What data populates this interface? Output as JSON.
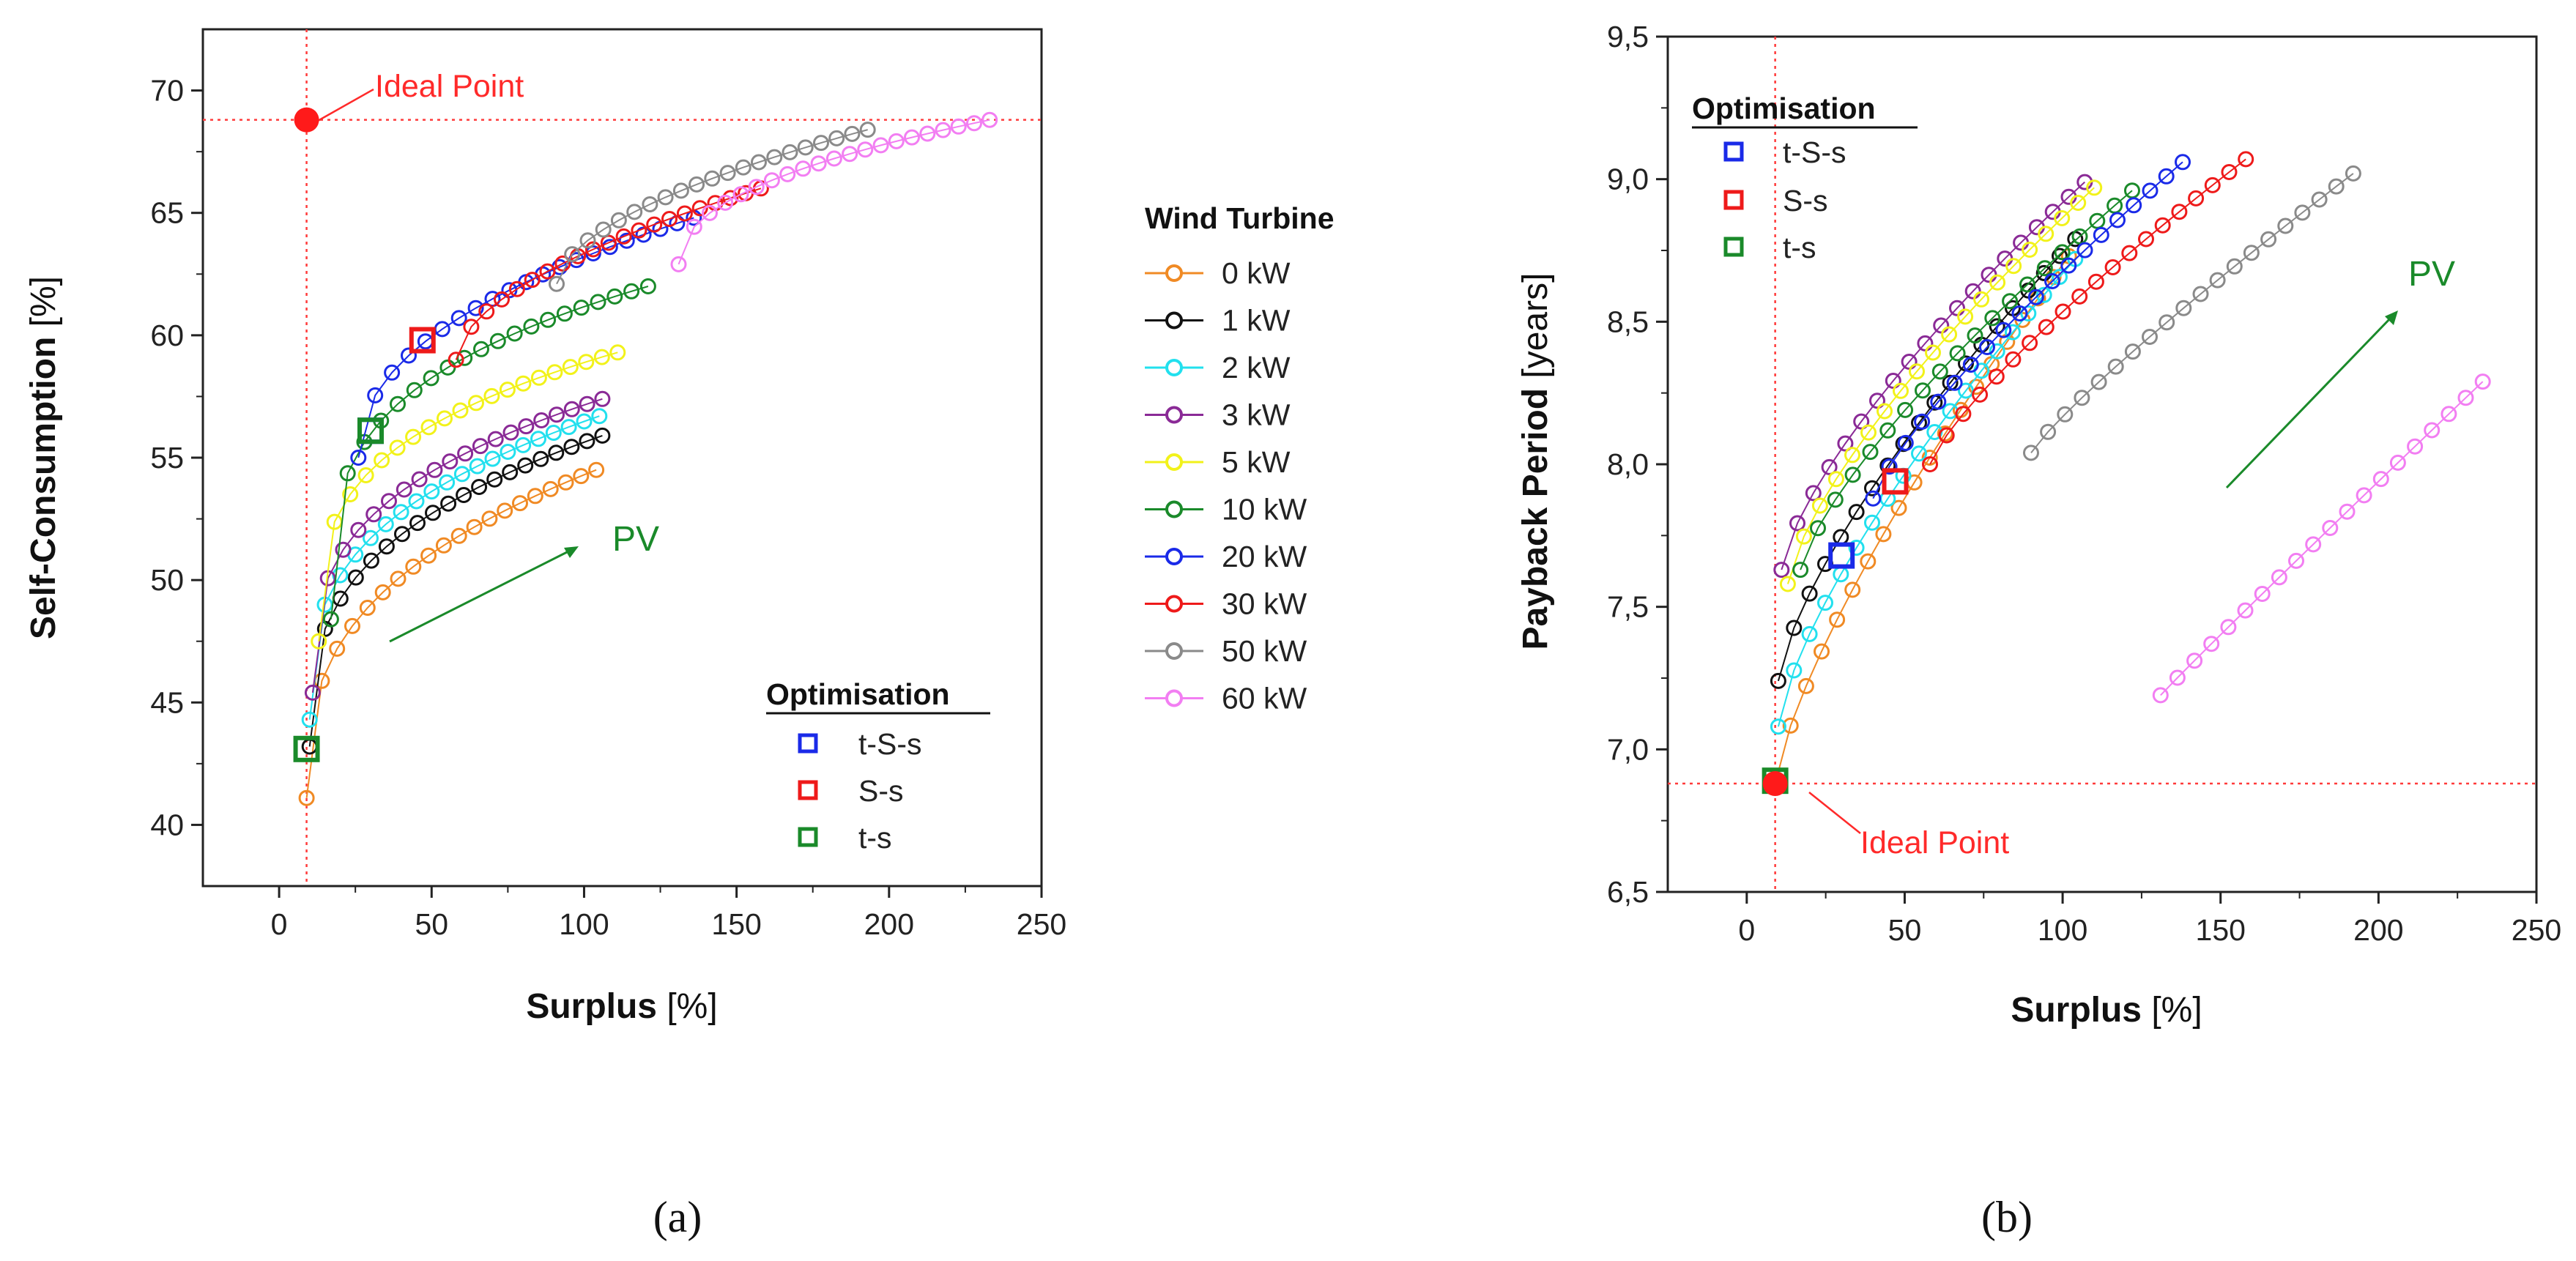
{
  "figure": {
    "subfigure_a_label": "(a)",
    "subfigure_b_label": "(b)"
  },
  "legend_wind": {
    "title": "Wind Turbine",
    "items": [
      {
        "label": "0 kW",
        "color": "#f08a24"
      },
      {
        "label": "1 kW",
        "color": "#111111"
      },
      {
        "label": "2 kW",
        "color": "#22e0ee"
      },
      {
        "label": "3 kW",
        "color": "#8a2a96"
      },
      {
        "label": "5 kW",
        "color": "#f2f21a"
      },
      {
        "label": "10 kW",
        "color": "#1a8a2a"
      },
      {
        "label": "20 kW",
        "color": "#1a2ae8"
      },
      {
        "label": "30 kW",
        "color": "#ee1a1a"
      },
      {
        "label": "50 kW",
        "color": "#8a8a8a"
      },
      {
        "label": "60 kW",
        "color": "#f27ef2"
      }
    ]
  },
  "legend_opt": {
    "title": "Optimisation",
    "items": [
      {
        "label": "t-S-s",
        "color": "#1a2ae8"
      },
      {
        "label": "S-s",
        "color": "#ee1a1a"
      },
      {
        "label": "t-s",
        "color": "#1a8a2a"
      }
    ]
  },
  "chart_data": [
    {
      "type": "scatter",
      "subplot": "(a)",
      "title": "",
      "xlabel_main": "Surplus",
      "xlabel_unit": " [%]",
      "ylabel_main": "Self-Consumption",
      "ylabel_unit": " [%]",
      "xlim": [
        -25,
        250
      ],
      "ylim": [
        37.5,
        72.5
      ],
      "xticks": [
        0,
        50,
        100,
        150,
        200,
        250
      ],
      "yticks": [
        40,
        45,
        50,
        55,
        60,
        65,
        70
      ],
      "grid": false,
      "ideal_point": {
        "x": 9,
        "y": 68.8,
        "label": "Ideal Point"
      },
      "pv_label": "PV",
      "series": [
        {
          "name": "0 kW",
          "x_start": 9,
          "x_end": 104,
          "n": 20,
          "y_start": 41.1,
          "y_end": 54.5,
          "shape": 0.35
        },
        {
          "name": "1 kW",
          "x_start": 10,
          "x_end": 106,
          "n": 20,
          "y_start": 43.2,
          "y_end": 55.9,
          "shape": 0.33
        },
        {
          "name": "2 kW",
          "x_start": 10,
          "x_end": 105,
          "n": 20,
          "y_start": 44.3,
          "y_end": 56.7,
          "shape": 0.33
        },
        {
          "name": "3 kW",
          "x_start": 11,
          "x_end": 106,
          "n": 20,
          "y_start": 45.4,
          "y_end": 57.4,
          "shape": 0.32
        },
        {
          "name": "5 kW",
          "x_start": 13,
          "x_end": 111,
          "n": 20,
          "y_start": 47.5,
          "y_end": 59.3,
          "shape": 0.3
        },
        {
          "name": "10 kW",
          "x_start": 17,
          "x_end": 121,
          "n": 20,
          "y_start": 48.4,
          "y_end": 62.0,
          "shape": 0.28
        },
        {
          "name": "20 kW",
          "x_start": 26,
          "x_end": 136,
          "n": 21,
          "y_start": 55.0,
          "y_end": 64.8,
          "shape": 0.45
        },
        {
          "name": "30 kW",
          "x_start": 58,
          "x_end": 158,
          "n": 21,
          "y_start": 59.0,
          "y_end": 66.0,
          "shape": 0.55
        },
        {
          "name": "50 kW",
          "x_start": 91,
          "x_end": 193,
          "n": 21,
          "y_start": 62.1,
          "y_end": 68.4,
          "shape": 0.55
        },
        {
          "name": "60 kW",
          "x_start": 131,
          "x_end": 233,
          "n": 21,
          "y_start": 62.9,
          "y_end": 68.8,
          "shape": 0.45
        }
      ],
      "optimisation_points": [
        {
          "name": "t-S-s",
          "x": 30,
          "y": 56.1
        },
        {
          "name": "S-s",
          "x": 47,
          "y": 59.8
        },
        {
          "name": "t-s",
          "x": 9,
          "y": 43.1
        },
        {
          "name": "t-s",
          "x": 30,
          "y": 56.1
        }
      ]
    },
    {
      "type": "scatter",
      "subplot": "(b)",
      "title": "",
      "xlabel_main": "Surplus",
      "xlabel_unit": " [%]",
      "ylabel_main": "Payback Period",
      "ylabel_unit": " [years]",
      "xlim": [
        -25,
        250
      ],
      "ylim": [
        6.5,
        9.5
      ],
      "xticks": [
        0,
        50,
        100,
        150,
        200,
        250
      ],
      "yticks": [
        "6,5",
        "7,0",
        "7,5",
        "8,0",
        "8,5",
        "9,0",
        "9,5"
      ],
      "ytick_values": [
        6.5,
        7.0,
        7.5,
        8.0,
        8.5,
        9.0,
        9.5
      ],
      "grid": false,
      "ideal_point": {
        "x": 9,
        "y": 6.88,
        "label": "Ideal Point"
      },
      "pv_label": "PV",
      "series": [
        {
          "name": "0 kW",
          "x_start": 9,
          "x_end": 102,
          "n": 20,
          "y_start": 6.88,
          "y_end": 8.73,
          "shape": 0.75
        },
        {
          "name": "1 kW",
          "x_start": 10,
          "x_end": 104,
          "n": 20,
          "y_start": 7.24,
          "y_end": 8.79,
          "shape": 0.72
        },
        {
          "name": "2 kW",
          "x_start": 10,
          "x_end": 104,
          "n": 20,
          "y_start": 7.08,
          "y_end": 8.72,
          "shape": 0.72
        },
        {
          "name": "3 kW",
          "x_start": 11,
          "x_end": 107,
          "n": 20,
          "y_start": 7.63,
          "y_end": 8.99,
          "shape": 0.72
        },
        {
          "name": "5 kW",
          "x_start": 13,
          "x_end": 110,
          "n": 20,
          "y_start": 7.58,
          "y_end": 8.97,
          "shape": 0.72
        },
        {
          "name": "10 kW",
          "x_start": 17,
          "x_end": 122,
          "n": 20,
          "y_start": 7.63,
          "y_end": 8.96,
          "shape": 0.75
        },
        {
          "name": "20 kW",
          "x_start": 40,
          "x_end": 138,
          "n": 20,
          "y_start": 7.88,
          "y_end": 9.06,
          "shape": 0.8
        },
        {
          "name": "30 kW",
          "x_start": 58,
          "x_end": 158,
          "n": 20,
          "y_start": 8.0,
          "y_end": 9.07,
          "shape": 0.8
        },
        {
          "name": "50 kW",
          "x_start": 90,
          "x_end": 192,
          "n": 20,
          "y_start": 8.04,
          "y_end": 9.02,
          "shape": 0.88
        },
        {
          "name": "60 kW",
          "x_start": 131,
          "x_end": 233,
          "n": 20,
          "y_start": 7.19,
          "y_end": 8.29,
          "shape": 0.98
        }
      ],
      "optimisation_points": [
        {
          "name": "t-S-s",
          "x": 30,
          "y": 7.68
        },
        {
          "name": "S-s",
          "x": 47,
          "y": 7.94
        },
        {
          "name": "t-s",
          "x": 9,
          "y": 6.89
        }
      ]
    }
  ]
}
